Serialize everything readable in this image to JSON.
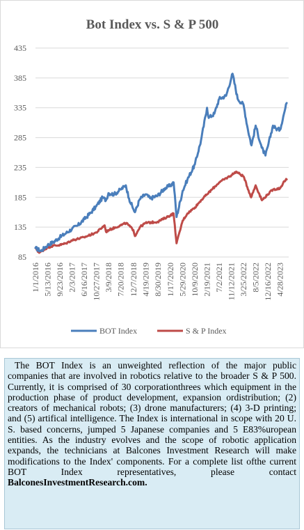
{
  "chart_data": {
    "type": "line",
    "title": "Bot Index vs. S & P 500",
    "xlabel": "",
    "ylabel": "",
    "ylim": [
      85,
      435
    ],
    "yticks": [
      85,
      135,
      185,
      235,
      285,
      335,
      385,
      435
    ],
    "grid": true,
    "legend_position": "bottom",
    "xticks": [
      "1/1/2016",
      "5/13/2016",
      "9/23/2016",
      "2/3/2017",
      "6/16/2017",
      "10/27/2017",
      "3/9/2018",
      "7/20/2018",
      "12/7/2018",
      "4/19/2019",
      "8/30/2019",
      "1/17/2020",
      "5/29/2020",
      "10/9/2020",
      "2/19/2021",
      "7/2/2021",
      "11/12/2021",
      "3/25/2022",
      "8/5/2022",
      "12/16/2022",
      "4/28/2023"
    ],
    "series": [
      {
        "name": "BOT Index",
        "color": "#4a7ebb",
        "points": [
          [
            "1/1/2016",
            100
          ],
          [
            "3/1/2016",
            95
          ],
          [
            "5/13/2016",
            105
          ],
          [
            "7/15/2016",
            110
          ],
          [
            "9/23/2016",
            118
          ],
          [
            "12/1/2016",
            125
          ],
          [
            "2/3/2017",
            132
          ],
          [
            "4/10/2017",
            138
          ],
          [
            "6/16/2017",
            148
          ],
          [
            "8/20/2017",
            158
          ],
          [
            "10/27/2017",
            170
          ],
          [
            "1/5/2018",
            185
          ],
          [
            "2/10/2018",
            180
          ],
          [
            "3/9/2018",
            192
          ],
          [
            "5/10/2018",
            190
          ],
          [
            "7/20/2018",
            198
          ],
          [
            "9/15/2018",
            205
          ],
          [
            "10/20/2018",
            183
          ],
          [
            "12/7/2018",
            165
          ],
          [
            "12/24/2018",
            160
          ],
          [
            "2/15/2019",
            182
          ],
          [
            "4/19/2019",
            190
          ],
          [
            "6/10/2019",
            183
          ],
          [
            "8/30/2019",
            188
          ],
          [
            "11/15/2019",
            200
          ],
          [
            "1/17/2020",
            205
          ],
          [
            "2/20/2020",
            210
          ],
          [
            "3/23/2020",
            152
          ],
          [
            "5/29/2020",
            196
          ],
          [
            "7/20/2020",
            215
          ],
          [
            "10/9/2020",
            240
          ],
          [
            "12/15/2020",
            280
          ],
          [
            "2/19/2021",
            335
          ],
          [
            "3/10/2021",
            318
          ],
          [
            "5/10/2021",
            325
          ],
          [
            "7/2/2021",
            350
          ],
          [
            "9/15/2021",
            355
          ],
          [
            "11/12/2021",
            385
          ],
          [
            "11/25/2021",
            392
          ],
          [
            "1/20/2022",
            350
          ],
          [
            "3/25/2022",
            340
          ],
          [
            "5/10/2022",
            300
          ],
          [
            "6/20/2022",
            272
          ],
          [
            "8/5/2022",
            305
          ],
          [
            "10/10/2022",
            268
          ],
          [
            "11/20/2022",
            255
          ],
          [
            "12/16/2022",
            270
          ],
          [
            "2/10/2023",
            305
          ],
          [
            "3/15/2023",
            300
          ],
          [
            "4/28/2023",
            298
          ],
          [
            "6/10/2023",
            325
          ],
          [
            "7/10/2023",
            343
          ]
        ]
      },
      {
        "name": "S & P Index",
        "color": "#be4b48",
        "points": [
          [
            "1/1/2016",
            100
          ],
          [
            "2/11/2016",
            92
          ],
          [
            "5/13/2016",
            101
          ],
          [
            "7/15/2016",
            104
          ],
          [
            "9/23/2016",
            105
          ],
          [
            "12/1/2016",
            108
          ],
          [
            "2/3/2017",
            113
          ],
          [
            "6/16/2017",
            118
          ],
          [
            "10/27/2017",
            126
          ],
          [
            "1/26/2018",
            138
          ],
          [
            "2/10/2018",
            127
          ],
          [
            "3/9/2018",
            130
          ],
          [
            "7/20/2018",
            138
          ],
          [
            "9/20/2018",
            142
          ],
          [
            "12/7/2018",
            130
          ],
          [
            "12/24/2018",
            120
          ],
          [
            "2/15/2019",
            135
          ],
          [
            "4/19/2019",
            142
          ],
          [
            "8/30/2019",
            144
          ],
          [
            "1/17/2020",
            155
          ],
          [
            "2/19/2020",
            158
          ],
          [
            "3/23/2020",
            108
          ],
          [
            "5/29/2020",
            146
          ],
          [
            "7/20/2020",
            158
          ],
          [
            "10/9/2020",
            168
          ],
          [
            "12/15/2020",
            180
          ],
          [
            "2/19/2021",
            190
          ],
          [
            "7/2/2021",
            210
          ],
          [
            "11/12/2021",
            222
          ],
          [
            "1/3/2022",
            228
          ],
          [
            "3/25/2022",
            220
          ],
          [
            "6/16/2022",
            185
          ],
          [
            "8/5/2022",
            205
          ],
          [
            "10/12/2022",
            180
          ],
          [
            "12/16/2022",
            190
          ],
          [
            "2/10/2023",
            198
          ],
          [
            "4/28/2023",
            200
          ],
          [
            "6/15/2023",
            212
          ],
          [
            "7/10/2023",
            215
          ]
        ]
      }
    ]
  },
  "description": {
    "body": "The BOT Index is an unweighted reflection of the major public companies that are involved in robotics relative to the broader S & P 500. Currently, it is comprised of 30 corporationthrees which equipment in the production phase of product development, expansion ordistribution; (2) creators of mechanical robots; (3) drone manufacturers; (4) 3-D printing; and (5) artifical intelligence. The Index is international in scope with 20 U. S. based concerns, jumped 5 Japanese companies and 5 E83%uropean entities. As the industry evolves and the scope of robotic application expands, the technicians at Balcones Investment Research will make modifications to the Index' components. For a complete list ofthe current BOT Index representatives, please contact",
    "website": "BalconesInvestmentResearch.com."
  }
}
